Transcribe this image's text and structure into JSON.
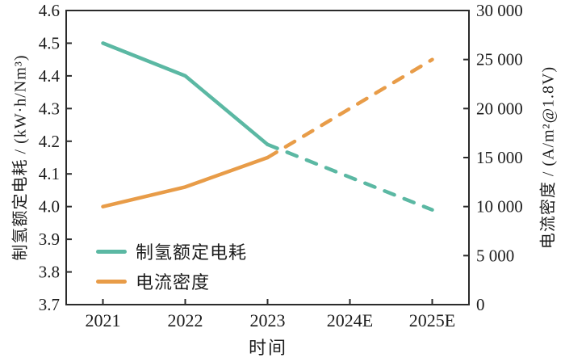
{
  "chart_data": {
    "type": "line",
    "title": "",
    "xlabel": "时间",
    "categories": [
      "2021",
      "2022",
      "2023",
      "2024E",
      "2025E"
    ],
    "left_axis": {
      "label": "制氢额定电耗 / (kW·h/Nm³)",
      "range": [
        3.7,
        4.6
      ],
      "tick_step": 0.1,
      "tick_labels": [
        "4.6",
        "4.5",
        "4.4",
        "4.3",
        "4.2",
        "4.1",
        "4.0",
        "3.9",
        "3.8",
        "3.7"
      ]
    },
    "right_axis": {
      "label": "电流密度 / (A/m²@1.8V)",
      "range": [
        0,
        30000
      ],
      "tick_step": 5000,
      "tick_labels": [
        "30 000",
        "25 000",
        "20 000",
        "15 000",
        "10 000",
        "5 000",
        "0"
      ]
    },
    "series": [
      {
        "name": "制氢额定电耗",
        "axis": "left",
        "color": "#5bb8a3",
        "values": [
          4.5,
          4.4,
          4.19,
          4.09,
          3.99
        ],
        "line_style": "solid-then-dashed",
        "dashed_from_index": 2
      },
      {
        "name": "电流密度",
        "axis": "right",
        "color": "#e89c48",
        "values": [
          10000,
          12000,
          15000,
          20000,
          25000
        ],
        "line_style": "solid-then-dashed",
        "dashed_from_index": 2
      }
    ],
    "legend": {
      "position": "lower-left",
      "items": [
        "制氢额定电耗",
        "电流密度"
      ]
    },
    "grid": false,
    "frame_color": "#2b2b2b",
    "text_color": "#1c1c1c"
  }
}
